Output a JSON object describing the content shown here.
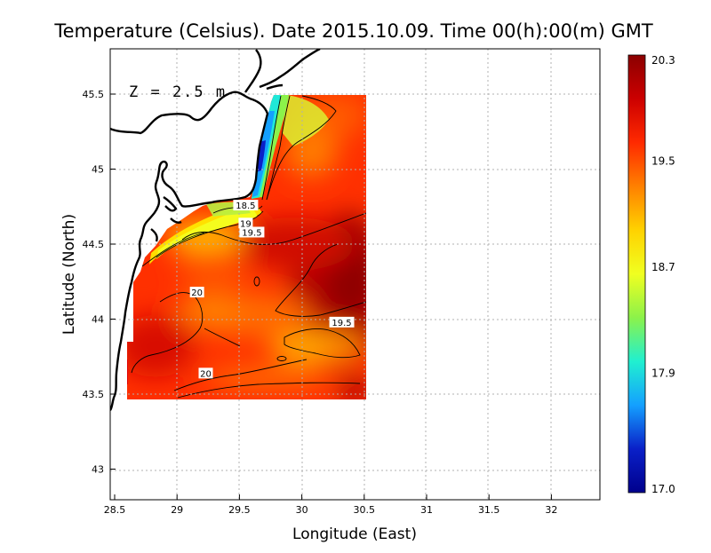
{
  "title": "Temperature (Celsius). Date 2015.10.09. Time 00(h):00(m) GMT",
  "depth_label": "Z = 2.5 m",
  "xlabel": "Longitude (East)",
  "ylabel": "Latitude (North)",
  "x_ticks": [
    "28.5",
    "29",
    "29.5",
    "30",
    "30.5",
    "31",
    "31.5",
    "32"
  ],
  "y_ticks": [
    "43",
    "43.5",
    "44",
    "44.5",
    "45",
    "45.5"
  ],
  "colorbar": {
    "min": 17.0,
    "max": 20.3,
    "tick_labels": [
      "20.3",
      "19.5",
      "18.7",
      "17.9",
      "17.0"
    ],
    "colors": [
      "#8b0000",
      "#cc0000",
      "#ff2a00",
      "#ff8000",
      "#ffd200",
      "#f0ff20",
      "#8cf24a",
      "#20f0d0",
      "#14a0ff",
      "#0a20c8",
      "#00008c"
    ]
  },
  "contour_labels": [
    {
      "text": "18.5",
      "lon": 29.55,
      "lat": 44.76
    },
    {
      "text": "19",
      "lon": 29.55,
      "lat": 44.64
    },
    {
      "text": "19.5",
      "lon": 29.6,
      "lat": 44.58
    },
    {
      "text": "20",
      "lon": 29.16,
      "lat": 44.18
    },
    {
      "text": "19.5",
      "lon": 30.32,
      "lat": 43.98
    },
    {
      "text": "20",
      "lon": 29.23,
      "lat": 43.64
    }
  ],
  "chart_data": {
    "type": "heatmap",
    "title": "Temperature (Celsius). Date 2015.10.09. Time 00(h):00(m) GMT",
    "xlabel": "Longitude (East)",
    "ylabel": "Latitude (North)",
    "xlim": [
      28.5,
      32.4
    ],
    "ylim": [
      42.8,
      45.8
    ],
    "variable": "Temperature",
    "units": "Celsius",
    "depth": "Z = 2.5 m",
    "value_range": [
      17.0,
      20.3
    ],
    "contour_levels": [
      18.5,
      19,
      19.5,
      20
    ],
    "grid": true,
    "domain": {
      "lon": [
        28.6,
        30.5
      ],
      "lat": [
        43.5,
        45.5
      ]
    }
  }
}
